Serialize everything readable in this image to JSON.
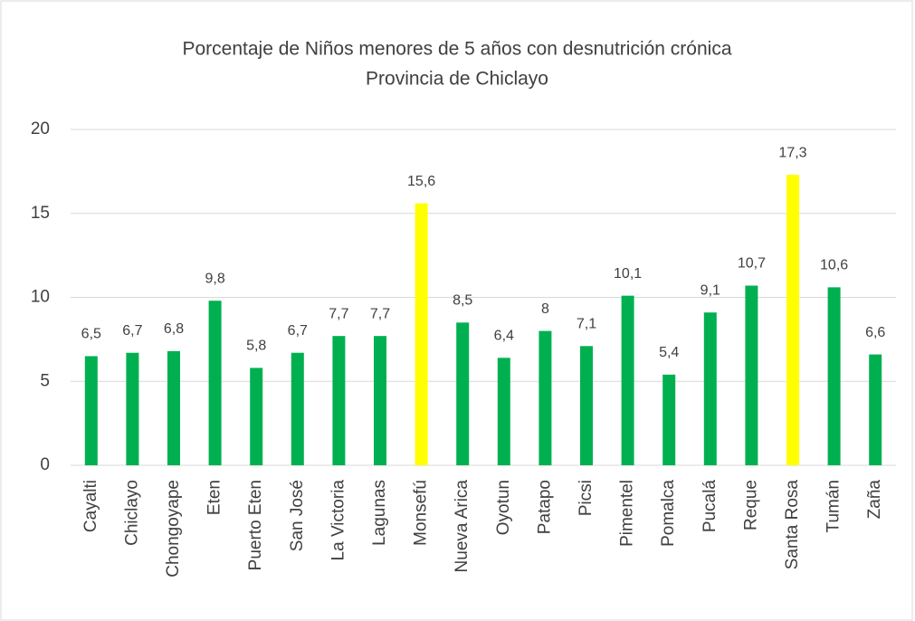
{
  "chart_data": {
    "type": "bar",
    "title": [
      "Porcentaje de Niños menores de 5 años con desnutrición crónica",
      "Provincia de Chiclayo"
    ],
    "categories": [
      "Cayalti",
      "Chiclayo",
      "Chongoyape",
      "Eten",
      "Puerto Eten",
      "San José",
      "La Victoria",
      "Lagunas",
      "Monsefú",
      "Nueva Arica",
      "Oyotun",
      "Patapo",
      "Picsi",
      "Pimentel",
      "Pomalca",
      "Pucalá",
      "Reque",
      "Santa Rosa",
      "Tumán",
      "Zaña"
    ],
    "values": [
      6.5,
      6.7,
      6.8,
      9.8,
      5.8,
      6.7,
      7.7,
      7.7,
      15.6,
      8.5,
      6.4,
      8,
      7.1,
      10.1,
      5.4,
      9.1,
      10.7,
      17.3,
      10.6,
      6.6
    ],
    "value_labels": [
      "6,5",
      "6,7",
      "6,8",
      "9,8",
      "5,8",
      "6,7",
      "7,7",
      "7,7",
      "15,6",
      "8,5",
      "6,4",
      "8",
      "7,1",
      "10,1",
      "5,4",
      "9,1",
      "10,7",
      "17,3",
      "10,6",
      "6,6"
    ],
    "colors": [
      "#00b050",
      "#00b050",
      "#00b050",
      "#00b050",
      "#00b050",
      "#00b050",
      "#00b050",
      "#00b050",
      "#ffff00",
      "#00b050",
      "#00b050",
      "#00b050",
      "#00b050",
      "#00b050",
      "#00b050",
      "#00b050",
      "#00b050",
      "#ffff00",
      "#00b050",
      "#00b050"
    ],
    "ylim": [
      0,
      20
    ],
    "yticks": [
      0,
      5,
      10,
      15,
      20
    ],
    "grid": true
  }
}
